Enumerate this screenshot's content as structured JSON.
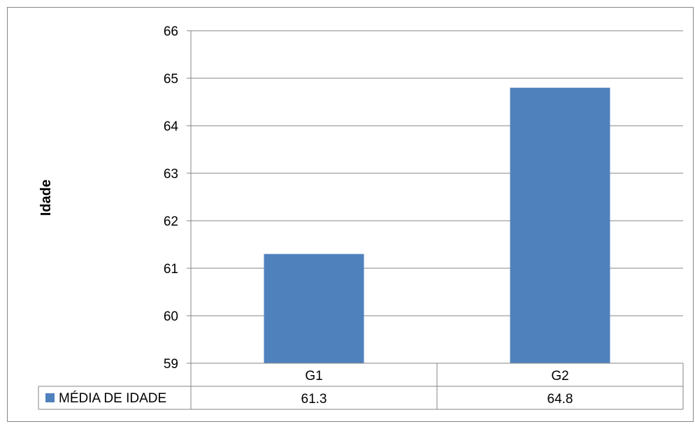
{
  "chart_data": {
    "type": "bar",
    "title": "",
    "xlabel": "",
    "ylabel": "Idade",
    "ylim": [
      59,
      66
    ],
    "yticks": [
      "59",
      "60",
      "61",
      "62",
      "63",
      "64",
      "65",
      "66"
    ],
    "grid": true,
    "categories": [
      "G1",
      "G2"
    ],
    "series": [
      {
        "name": "MÉDIA DE IDADE",
        "color": "#4F81BD",
        "values": [
          61.3,
          64.8
        ],
        "value_labels": [
          "61.3",
          "64.8"
        ]
      }
    ],
    "legend": "data-table-below"
  }
}
